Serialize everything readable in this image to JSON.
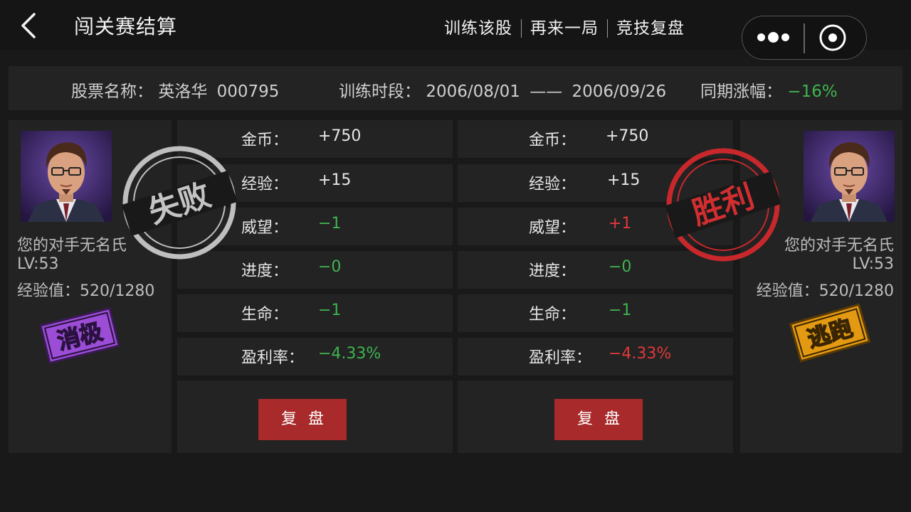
{
  "header": {
    "title": "闯关赛结算",
    "actions": [
      "训练该股",
      "再来一局",
      "竞技复盘"
    ]
  },
  "info": {
    "stock_label": "股票名称：",
    "stock_name": "英洛华",
    "stock_code": "000795",
    "period_label": "训练时段：",
    "period_start": "2006/08/01",
    "period_dash": "——",
    "period_end": "2006/09/26",
    "change_label": "同期涨幅：",
    "change_value": "−16%"
  },
  "left_player": {
    "name": "您的对手无名氏",
    "level": "LV:53",
    "exp": "经验值：520/1280",
    "result_stamp": "失败",
    "tag": "消极"
  },
  "right_player": {
    "name": "您的对手无名氏",
    "level": "LV:53",
    "exp": "经验值：520/1280",
    "result_stamp": "胜利",
    "tag": "逃跑"
  },
  "left_stats": [
    {
      "label": "金币：",
      "value": "+750"
    },
    {
      "label": "经验：",
      "value": "+15"
    },
    {
      "label": "威望：",
      "value": "−1"
    },
    {
      "label": "进度：",
      "value": "−0"
    },
    {
      "label": "生命：",
      "value": "−1"
    },
    {
      "label": "盈利率：",
      "value": "−4.33%"
    }
  ],
  "right_stats": [
    {
      "label": "金币：",
      "value": "+750"
    },
    {
      "label": "经验：",
      "value": "+15"
    },
    {
      "label": "威望：",
      "value": "+1"
    },
    {
      "label": "进度：",
      "value": "−0"
    },
    {
      "label": "生命：",
      "value": "−1"
    },
    {
      "label": "盈利率：",
      "value": "−4.33%"
    }
  ],
  "buttons": {
    "replay": "复盘"
  },
  "colors": {
    "positive_green": "#3fb34f",
    "negative_red": "#e0393b",
    "button_red": "#a82a2a",
    "stamp_gray": "#bfbfbf",
    "stamp_red": "#c8282b",
    "tag_purple": "#9b4dd6",
    "tag_orange": "#e39a12"
  },
  "icons": {
    "back": "chevron-left-icon",
    "more": "more-dots-icon",
    "close": "target-circle-icon"
  }
}
